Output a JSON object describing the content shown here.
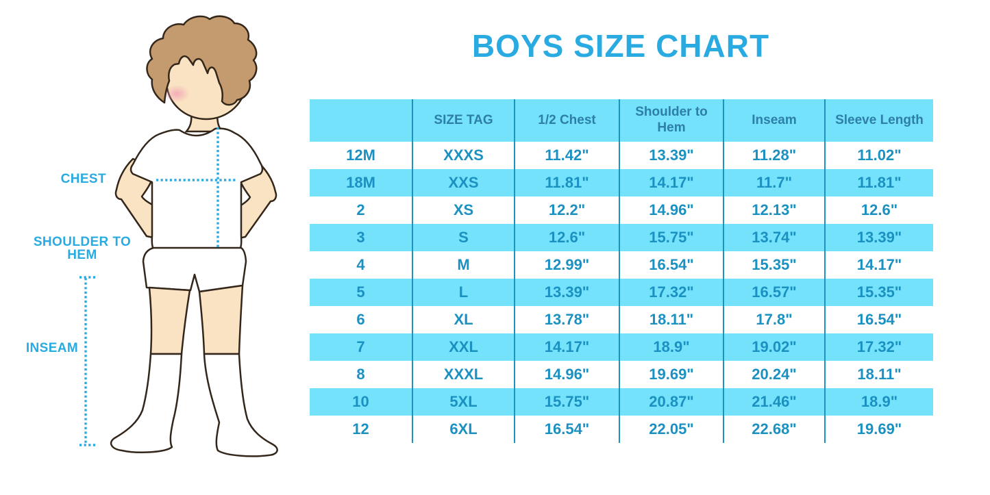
{
  "title": "BOYS SIZE CHART",
  "figure": {
    "description": "boy-with-measurement-lines",
    "labels": {
      "chest": "CHEST",
      "shoulder_to_hem": "SHOULDER TO HEM",
      "inseam": "INSEAM"
    }
  },
  "table": {
    "headers": [
      "",
      "SIZE TAG",
      "1/2 Chest",
      "Shoulder to Hem",
      "Inseam",
      "Sleeve Length"
    ],
    "rows": [
      [
        "12M",
        "XXXS",
        "11.42\"",
        "13.39\"",
        "11.28\"",
        "11.02\""
      ],
      [
        "18M",
        "XXS",
        "11.81\"",
        "14.17\"",
        "11.7\"",
        "11.81\""
      ],
      [
        "2",
        "XS",
        "12.2\"",
        "14.96\"",
        "12.13\"",
        "12.6\""
      ],
      [
        "3",
        "S",
        "12.6\"",
        "15.75\"",
        "13.74\"",
        "13.39\""
      ],
      [
        "4",
        "M",
        "12.99\"",
        "16.54\"",
        "15.35\"",
        "14.17\""
      ],
      [
        "5",
        "L",
        "13.39\"",
        "17.32\"",
        "16.57\"",
        "15.35\""
      ],
      [
        "6",
        "XL",
        "13.78\"",
        "18.11\"",
        "17.8\"",
        "16.54\""
      ],
      [
        "7",
        "XXL",
        "14.17\"",
        "18.9\"",
        "19.02\"",
        "17.32\""
      ],
      [
        "8",
        "XXXL",
        "14.96\"",
        "19.69\"",
        "20.24\"",
        "18.11\""
      ],
      [
        "10",
        "5XL",
        "15.75\"",
        "20.87\"",
        "21.46\"",
        "18.9\""
      ],
      [
        "12",
        "6XL",
        "16.54\"",
        "22.05\"",
        "22.68\"",
        "19.69\""
      ]
    ]
  },
  "colors": {
    "accent_blue": "#29ABE2",
    "stripe_cyan": "#74E2FB",
    "divider_blue": "#1B93BD",
    "cell_text": "#1B91C2",
    "header_text": "#2E7FA8",
    "hair_brown": "#C49B6E",
    "skin": "#FAE3C2",
    "blush_pink": "#F1A3B5",
    "outline": "#33261A"
  }
}
